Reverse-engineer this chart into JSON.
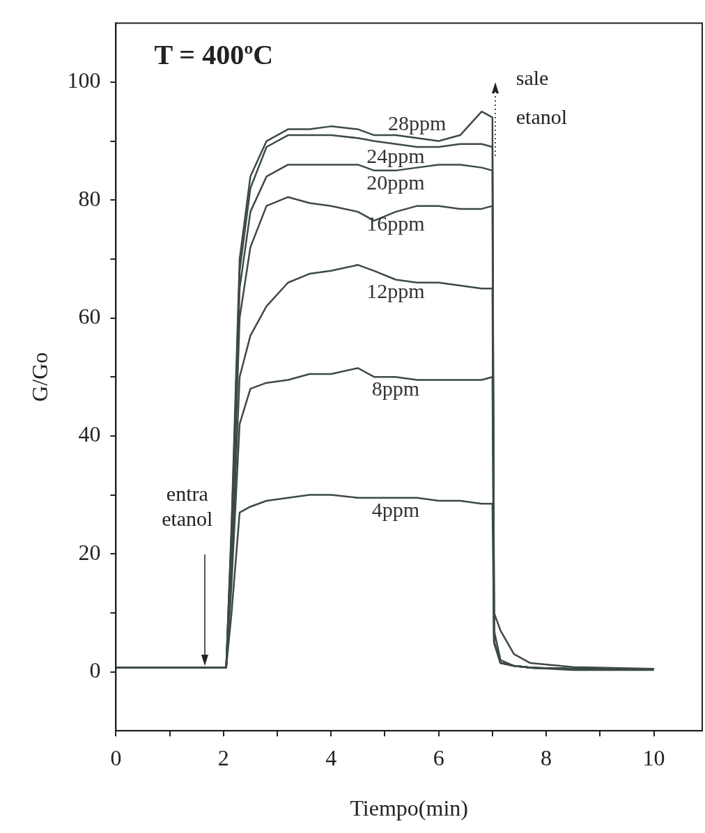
{
  "chart_data": {
    "type": "line",
    "title": "T = 400ºC",
    "xlabel": "Tiempo(min)",
    "ylabel": "G/Go",
    "x": [
      0,
      2.05,
      2.15,
      2.3,
      2.5,
      2.8,
      3.2,
      3.6,
      4.0,
      4.5,
      4.8,
      5.2,
      5.6,
      6.0,
      6.4,
      6.8,
      7.0,
      7.03,
      7.15,
      7.4,
      7.7,
      8.5,
      10
    ],
    "series": [
      {
        "name": "4ppm",
        "color": "#3d4a45",
        "values": [
          0.7,
          0.7,
          10,
          27,
          28,
          29,
          29.5,
          30,
          30,
          29.5,
          29.5,
          29.5,
          29.5,
          29,
          29,
          28.5,
          28.5,
          5,
          1.5,
          1,
          0.7,
          0.5,
          0.5
        ]
      },
      {
        "name": "8ppm",
        "color": "#3d4a45",
        "values": [
          0.7,
          0.7,
          15,
          42,
          48,
          49,
          49.5,
          50.5,
          50.5,
          51.5,
          50,
          50,
          49.5,
          49.5,
          49.5,
          49.5,
          50,
          5,
          1.5,
          1,
          0.7,
          0.5,
          0.5
        ]
      },
      {
        "name": "12ppm",
        "color": "#3d4a45",
        "values": [
          0.7,
          0.7,
          18,
          50,
          57,
          62,
          66,
          67.5,
          68,
          69,
          68,
          66.5,
          66,
          66,
          65.5,
          65,
          65,
          5,
          1.5,
          1,
          0.7,
          0.5,
          0.5
        ]
      },
      {
        "name": "16ppm",
        "color": "#3d4a45",
        "values": [
          0.7,
          0.7,
          20,
          60,
          72,
          79,
          80.5,
          79.5,
          79,
          78,
          76.5,
          78,
          79,
          79,
          78.5,
          78.5,
          79,
          5,
          1.5,
          1,
          0.7,
          0.5,
          0.5
        ]
      },
      {
        "name": "20ppm",
        "color": "#3d4a45",
        "values": [
          0.7,
          0.7,
          22,
          65,
          78,
          84,
          86,
          86,
          86,
          86,
          85,
          85,
          85.5,
          86,
          86,
          85.5,
          85,
          5,
          1.5,
          1,
          0.7,
          0.5,
          0.5
        ]
      },
      {
        "name": "24ppm",
        "color": "#3d4a45",
        "values": [
          0.7,
          0.7,
          24,
          68,
          82,
          89,
          91,
          91,
          91,
          90.5,
          90,
          89.5,
          89,
          89,
          89.5,
          89.5,
          89,
          7,
          2,
          1,
          0.7,
          0.3,
          0.3
        ]
      },
      {
        "name": "28ppm",
        "color": "#3d4a45",
        "values": [
          0.7,
          0.7,
          25,
          70,
          84,
          90,
          92,
          92,
          92.5,
          92,
          91,
          91,
          90.5,
          90,
          91,
          95,
          94,
          10,
          7,
          3,
          1.5,
          0.8,
          0.5
        ]
      }
    ],
    "annotations": [
      "entra etanol",
      "sale etanol"
    ],
    "xlim": [
      0,
      10.9
    ],
    "ylim": [
      -10,
      110
    ],
    "xticks": [
      0,
      {
        "value": 1,
        "label": null
      },
      2,
      {
        "value": 3,
        "label": null
      },
      4,
      {
        "value": 5,
        "label": null
      },
      6,
      {
        "value": 7,
        "label": null
      },
      8,
      {
        "value": 9,
        "label": null
      },
      10
    ],
    "yticks": [
      0,
      {
        "value": 10,
        "label": null
      },
      20,
      {
        "value": 30,
        "label": null
      },
      40,
      {
        "value": 50,
        "label": null
      },
      60,
      {
        "value": 70,
        "label": null
      },
      80,
      {
        "value": 90,
        "label": null
      },
      100
    ],
    "grid": false,
    "legend": false,
    "marker": "none",
    "line_style": "solid"
  }
}
